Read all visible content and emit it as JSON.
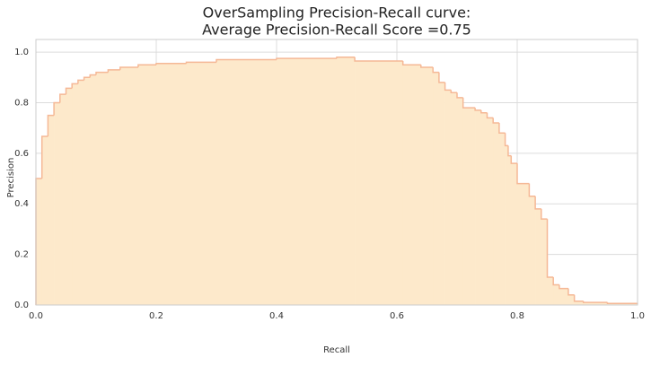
{
  "chart_data": {
    "type": "step-area",
    "title": [
      "OverSampling Precision-Recall curve:",
      "Average Precision-Recall Score =0.75"
    ],
    "xlabel": "Recall",
    "ylabel": "Precision",
    "x": [
      0,
      0.01,
      0.02,
      0.03,
      0.04,
      0.05,
      0.06,
      0.07,
      0.08,
      0.09,
      0.1,
      0.12,
      0.14,
      0.17,
      0.2,
      0.25,
      0.3,
      0.4,
      0.5,
      0.53,
      0.61,
      0.64,
      0.66,
      0.67,
      0.68,
      0.69,
      0.7,
      0.71,
      0.73,
      0.74,
      0.75,
      0.76,
      0.77,
      0.78,
      0.785,
      0.79,
      0.8,
      0.82,
      0.83,
      0.84,
      0.85,
      0.86,
      0.87,
      0.885,
      0.895,
      0.91,
      0.95,
      1.0
    ],
    "values": [
      0.5,
      0.667,
      0.75,
      0.8,
      0.833,
      0.857,
      0.875,
      0.889,
      0.9,
      0.91,
      0.92,
      0.93,
      0.94,
      0.95,
      0.955,
      0.96,
      0.97,
      0.975,
      0.98,
      0.965,
      0.95,
      0.94,
      0.92,
      0.88,
      0.85,
      0.84,
      0.82,
      0.78,
      0.77,
      0.76,
      0.74,
      0.72,
      0.68,
      0.63,
      0.59,
      0.56,
      0.48,
      0.43,
      0.38,
      0.34,
      0.11,
      0.08,
      0.065,
      0.04,
      0.015,
      0.01,
      0.006,
      0.004
    ],
    "color": "#f5b896",
    "fill": "#fde9cb",
    "xlim": [
      0,
      1.0
    ],
    "ylim": [
      0,
      1.05
    ],
    "xticks": [
      {
        "value": 0,
        "label": "0.0"
      },
      0.2,
      0.4,
      0.6,
      0.8,
      {
        "value": 1,
        "label": "1.0"
      }
    ],
    "yticks": [
      {
        "value": 0,
        "label": "0.0"
      },
      0.2,
      0.4,
      0.6,
      0.8,
      {
        "value": 1,
        "label": "1.0"
      }
    ],
    "grid": true
  }
}
